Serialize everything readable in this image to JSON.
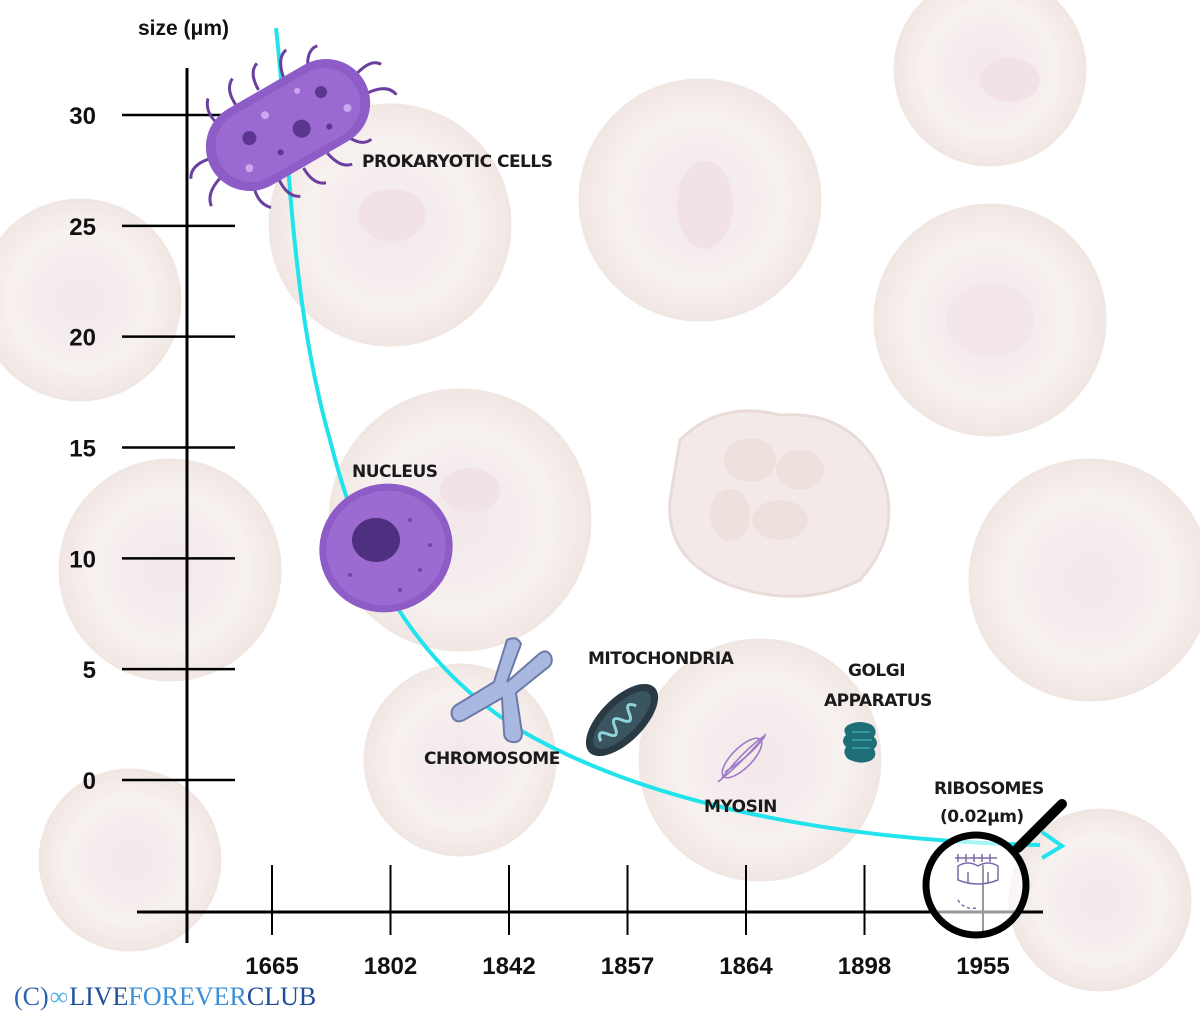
{
  "chart_data": {
    "type": "line",
    "ylabel": "size (μm)",
    "y_ticks": [
      "0",
      "5",
      "10",
      "15",
      "20",
      "25",
      "30"
    ],
    "x_ticks": [
      "1665",
      "1802",
      "1842",
      "1857",
      "1864",
      "1898",
      "1955"
    ],
    "points": [
      {
        "label": "PROKARYOTIC CELLS",
        "year": "1665",
        "size": 28
      },
      {
        "label": "NUCLEUS",
        "year": "1802",
        "size": 10
      },
      {
        "label": "CHROMOSOME",
        "year": "1842",
        "size": 3
      },
      {
        "label": "MITOCHONDRIA",
        "year": "1857",
        "size": 2
      },
      {
        "label": "MYOSIN",
        "year": "1864",
        "size": 1
      },
      {
        "label": "GOLGI APPARATUS",
        "year": "1898",
        "size": 1
      },
      {
        "label": "RIBOSOMES (0.02μm)",
        "year": "1955",
        "size": 0.02
      }
    ],
    "line_color": "#22e3ec",
    "grid": false
  },
  "labels": {
    "prokaryotic": "PROKARYOTIC CELLS",
    "nucleus": "NUCLEUS",
    "chromosome": "CHROMOSOME",
    "mitochondria": "MITOCHONDRIA",
    "myosin": "MYOSIN",
    "golgi_line1": "GOLGI",
    "golgi_line2": "APPARATUS",
    "ribosomes_line1": "RIBOSOMES",
    "ribosomes_line2": "(0.02μm)"
  },
  "credit": {
    "prefix": "(C)",
    "live": "LIVE",
    "forever": "FOREVER",
    "club": "CLUB"
  },
  "colors": {
    "curve": "#22e3ec",
    "cell_purple": "#8e5cc6",
    "chromosome": "#a8b8e0",
    "mitochondria": "#2a3a44",
    "golgi": "#1e6e78",
    "background_cells": "#f3ebe9"
  },
  "icons": {
    "prokaryotic": "bacterium-icon",
    "nucleus": "cell-nucleus-icon",
    "chromosome": "chromosome-icon",
    "mitochondria": "mitochondrion-icon",
    "myosin": "myosin-fiber-icon",
    "golgi": "golgi-icon",
    "ribosomes": "magnifier-ribosome-icon"
  }
}
